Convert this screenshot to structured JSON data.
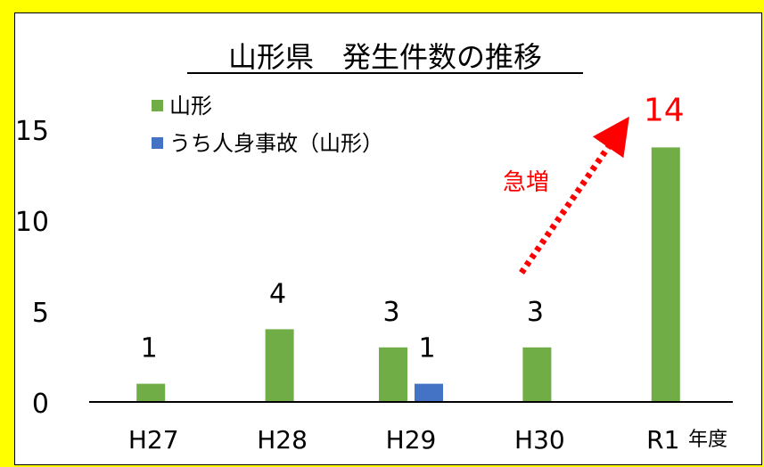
{
  "chart_data": {
    "type": "bar",
    "title": "山形県　発生件数の推移",
    "xlabel": "年度",
    "ylabel": "",
    "categories": [
      "H27",
      "H28",
      "H29",
      "H30",
      "R1"
    ],
    "series": [
      {
        "name": "山形",
        "values": [
          1,
          4,
          3,
          3,
          14
        ],
        "color": "#70ad47"
      },
      {
        "name": "うち人身事故（山形）",
        "values": [
          null,
          null,
          1,
          null,
          null
        ],
        "color": "#4472c4"
      }
    ],
    "data_labels": [
      {
        "category": "H27",
        "series": 0,
        "text": "1"
      },
      {
        "category": "H28",
        "series": 0,
        "text": "4"
      },
      {
        "category": "H29",
        "series": 0,
        "text": "3"
      },
      {
        "category": "H29",
        "series": 1,
        "text": "1"
      },
      {
        "category": "H30",
        "series": 0,
        "text": "3"
      },
      {
        "category": "R1",
        "series": 0,
        "text": "14",
        "color": "#ff0000"
      }
    ],
    "yticks": [
      "0",
      "5",
      "10",
      "15"
    ],
    "ylim": [
      0,
      15
    ],
    "grid": false,
    "legend_position": "top-left",
    "annotation": {
      "text": "急増",
      "color": "#ff0000",
      "arrow": "dotted",
      "from": "H30",
      "to": "R1"
    },
    "background": "#ffff00"
  }
}
